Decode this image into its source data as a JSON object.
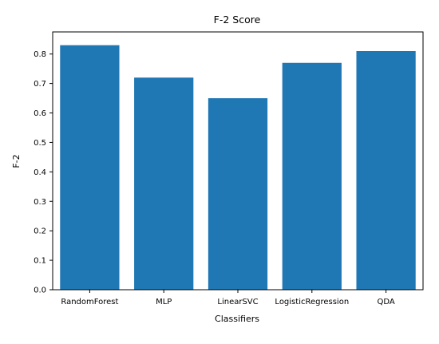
{
  "chart_data": {
    "type": "bar",
    "title": "F-2 Score",
    "xlabel": "Classifiers",
    "ylabel": "F-2",
    "categories": [
      "RandomForest",
      "MLP",
      "LinearSVC",
      "LogisticRegression",
      "QDA"
    ],
    "values": [
      0.83,
      0.72,
      0.65,
      0.77,
      0.81
    ],
    "ylim": [
      0,
      0.875
    ],
    "yticks": [
      0.0,
      0.1,
      0.2,
      0.3,
      0.4,
      0.5,
      0.6,
      0.7,
      0.8
    ],
    "ytick_labels": [
      "0.0",
      "0.1",
      "0.2",
      "0.3",
      "0.4",
      "0.5",
      "0.6",
      "0.7",
      "0.8"
    ],
    "bar_color": "#1f77b4",
    "grid": false,
    "legend": "none"
  }
}
